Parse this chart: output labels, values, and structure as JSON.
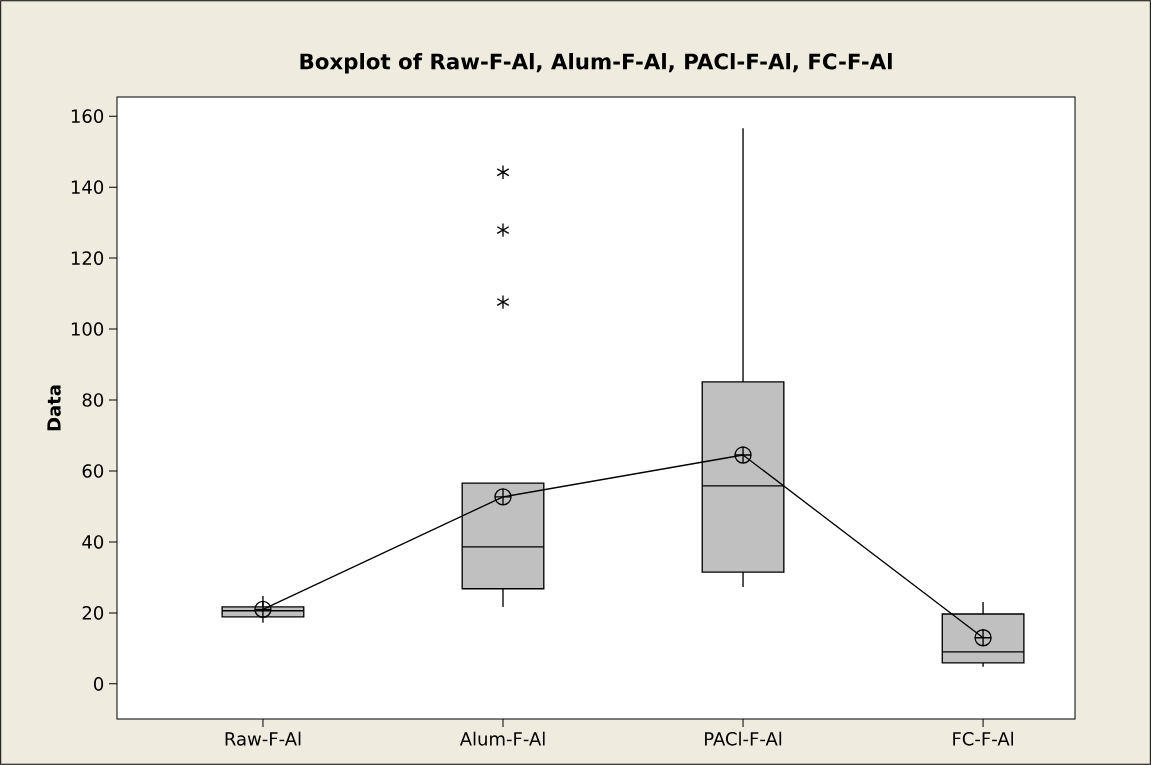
{
  "chart_data": {
    "type": "box",
    "title": "Boxplot of Raw-F-Al, Alum-F-Al, PACl-F-Al, FC-F-Al",
    "ylabel": "Data",
    "categories": [
      "Raw-F-Al",
      "Alum-F-Al",
      "PACl-F-Al",
      "FC-F-Al"
    ],
    "series": [
      {
        "color": "#c0c0c0",
        "boxes": [
          {
            "low": 17.2,
            "q1": 18.9,
            "median": 20.6,
            "q3": 21.7,
            "high": 24.8,
            "mean": 21
          },
          {
            "low": 21.7,
            "q1": 26.8,
            "median": 38.6,
            "q3": 56.6,
            "high": 56.6,
            "mean": 52.7,
            "outliers": [
              107.6,
              127.9,
              144.2
            ]
          },
          {
            "low": 27.3,
            "q1": 31.5,
            "median": 55.8,
            "q3": 85.1,
            "high": 156.6,
            "mean": 64.5
          },
          {
            "low": 4.8,
            "q1": 5.9,
            "median": 9.0,
            "q3": 19.7,
            "high": 23.1,
            "mean": 13.0
          }
        ]
      },
      {
        "type": "line",
        "color": "#000000",
        "marker": "none",
        "values": [
          21,
          52.7,
          64.5,
          13.0
        ]
      }
    ],
    "ylim": [
      -9.9,
      165.4
    ],
    "yticks": [
      0,
      20,
      40,
      60,
      80,
      100,
      120,
      140,
      160
    ]
  }
}
